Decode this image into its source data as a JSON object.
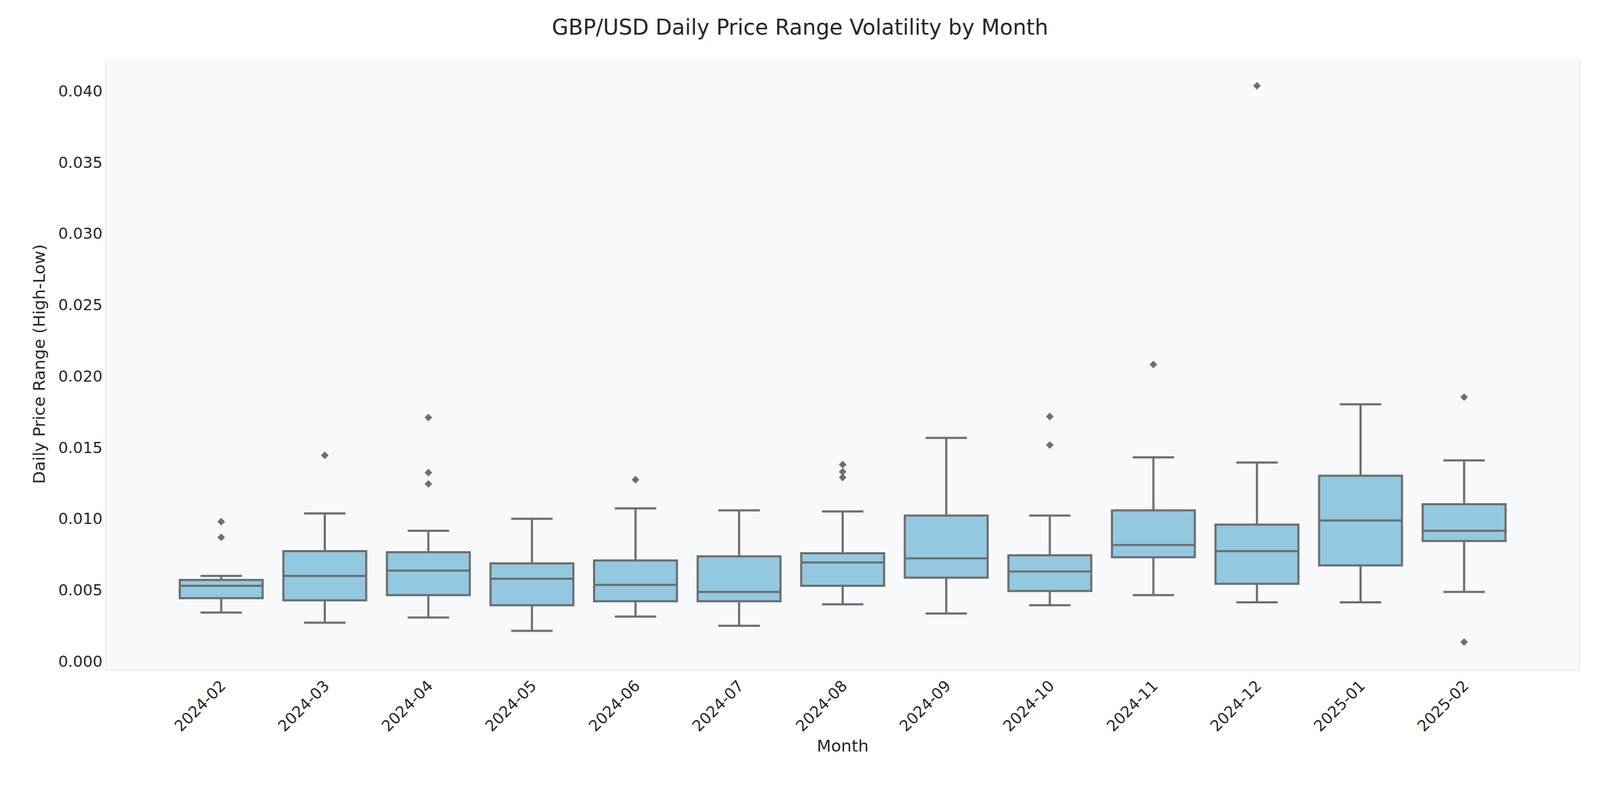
{
  "chart_data": {
    "type": "box",
    "title": "GBP/USD Daily Price Range Volatility by Month",
    "x_label": "Month",
    "y_label": "Daily Price Range (High-Low)",
    "categories": [
      "2024-02",
      "2024-03",
      "2024-04",
      "2024-05",
      "2024-06",
      "2024-07",
      "2024-08",
      "2024-09",
      "2024-10",
      "2024-11",
      "2024-12",
      "2025-01",
      "2025-02"
    ],
    "whisker_low": [
      0.00343,
      0.00272,
      0.00308,
      0.00215,
      0.00315,
      0.0025,
      0.00401,
      0.00336,
      0.00394,
      0.00465,
      0.00415,
      0.00415,
      0.00487
    ],
    "q1": [
      0.00444,
      0.00429,
      0.00465,
      0.00394,
      0.00422,
      0.00422,
      0.0053,
      0.00587,
      0.00494,
      0.0073,
      0.00544,
      0.00673,
      0.00844
    ],
    "median": [
      0.0053,
      0.006,
      0.00637,
      0.0058,
      0.00537,
      0.00487,
      0.00694,
      0.00723,
      0.0063,
      0.00816,
      0.00773,
      0.00988,
      0.00916
    ],
    "q3": [
      0.00572,
      0.00773,
      0.00766,
      0.00687,
      0.00708,
      0.00737,
      0.00758,
      0.01023,
      0.00744,
      0.01059,
      0.00959,
      0.01302,
      0.01102
    ],
    "whisker_high": [
      0.006,
      0.01038,
      0.00916,
      0.01,
      0.01073,
      0.01059,
      0.01052,
      0.01567,
      0.01023,
      0.01431,
      0.01395,
      0.01803,
      0.0141
    ],
    "outliers": [
      [
        0.0098,
        0.0087
      ],
      [
        0.01445
      ],
      [
        0.0171,
        0.01324,
        0.01245
      ],
      [],
      [
        0.01274
      ],
      [],
      [
        0.0138,
        0.0133,
        0.0129
      ],
      [],
      [
        0.01717,
        0.01517
      ],
      [
        0.02082
      ],
      [
        0.04036
      ],
      [],
      [
        0.01853,
        0.00136
      ]
    ],
    "color": "#92c9e0",
    "marker": "diamond",
    "ylim": [
      -0.0006,
      0.0423
    ],
    "yticks": [
      {
        "value": 0,
        "label": "0.000"
      },
      {
        "value": 0.005,
        "label": "0.005"
      },
      {
        "value": 0.01,
        "label": "0.010"
      },
      {
        "value": 0.015,
        "label": "0.015"
      },
      {
        "value": 0.02,
        "label": "0.020"
      },
      {
        "value": 0.025,
        "label": "0.025"
      },
      {
        "value": 0.03,
        "label": "0.030"
      },
      {
        "value": 0.035,
        "label": "0.035"
      },
      {
        "value": 0.04,
        "label": "0.040"
      }
    ],
    "grid": false
  }
}
